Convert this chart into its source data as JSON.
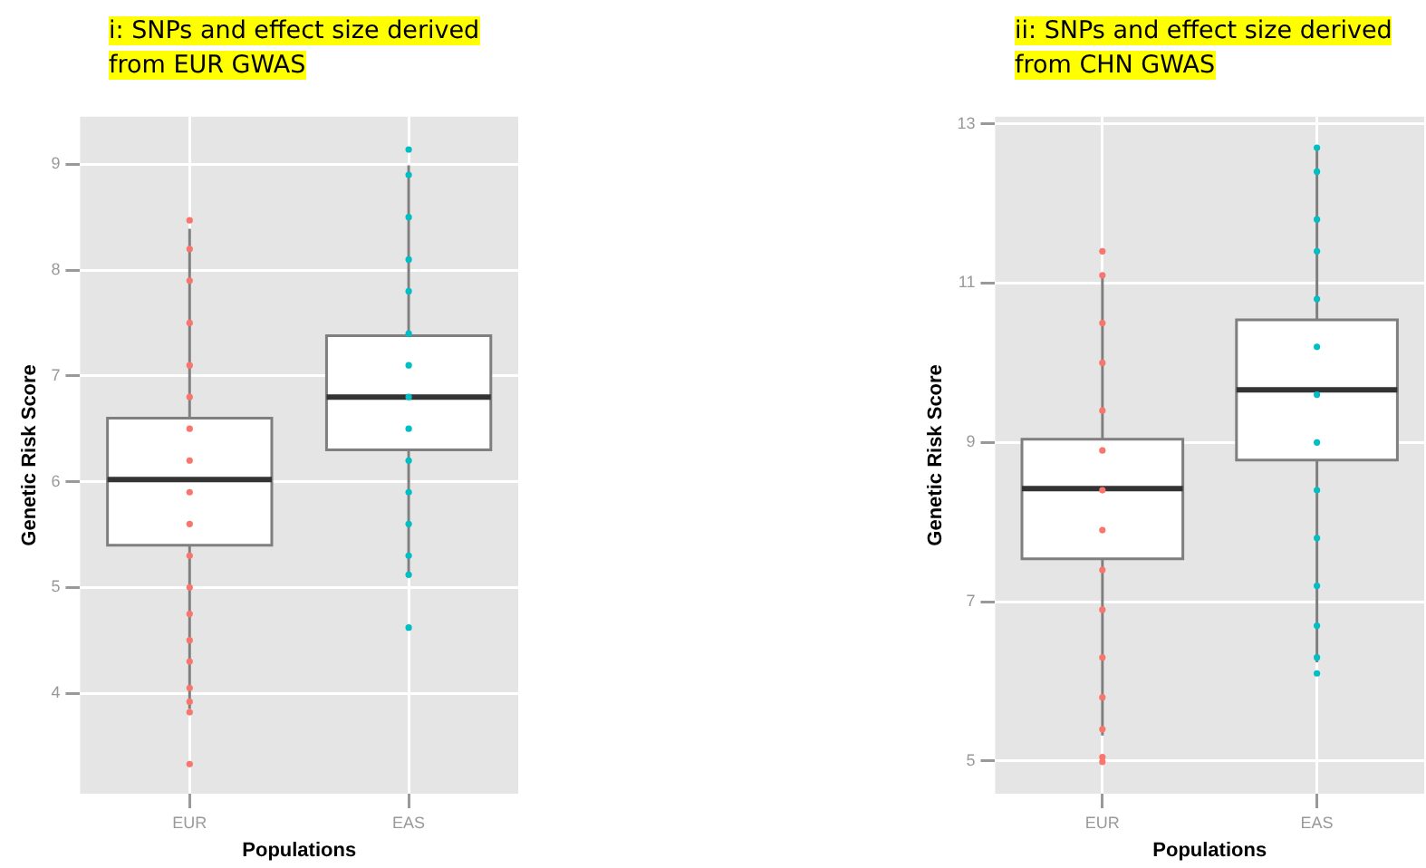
{
  "chart_data": [
    {
      "type": "box",
      "title": "i: SNPs and effect size derived from EUR GWAS",
      "xlabel": "Populations",
      "ylabel": "Genetic Risk Score",
      "categories": [
        "EUR",
        "EAS"
      ],
      "boxes": [
        {
          "low": 3.85,
          "q1": 5.4,
          "median": 6.02,
          "q3": 6.6,
          "high": 8.39
        },
        {
          "low": 5.14,
          "q1": 6.3,
          "median": 6.8,
          "q3": 7.38,
          "high": 8.99
        }
      ],
      "series": [
        {
          "type": "scatter",
          "color": "#f8766d",
          "x": [
            "EUR",
            "EUR",
            "EUR",
            "EUR",
            "EUR",
            "EUR",
            "EUR",
            "EUR",
            "EUR",
            "EUR",
            "EUR",
            "EUR",
            "EUR",
            "EUR",
            "EUR",
            "EUR",
            "EUR",
            "EUR",
            "EUR"
          ],
          "values": [
            3.33,
            3.82,
            3.92,
            4.05,
            4.3,
            4.5,
            4.75,
            5.0,
            5.3,
            5.6,
            5.9,
            6.2,
            6.5,
            6.8,
            7.1,
            7.5,
            7.9,
            8.2,
            8.47
          ]
        },
        {
          "type": "scatter",
          "color": "#00bfc4",
          "x": [
            "EAS",
            "EAS",
            "EAS",
            "EAS",
            "EAS",
            "EAS",
            "EAS",
            "EAS",
            "EAS",
            "EAS",
            "EAS",
            "EAS",
            "EAS",
            "EAS",
            "EAS"
          ],
          "values": [
            4.62,
            5.12,
            5.3,
            5.6,
            5.9,
            6.2,
            6.5,
            6.8,
            7.1,
            7.4,
            7.8,
            8.1,
            8.5,
            8.9,
            9.14
          ]
        }
      ],
      "ylim": [
        3.05,
        9.45
      ],
      "yticks": [
        4,
        5,
        6,
        7,
        8,
        9
      ],
      "grid": true,
      "legend": false
    },
    {
      "type": "box",
      "title": "ii: SNPs and effect size derived from CHN GWAS",
      "xlabel": "Populations",
      "ylabel": "Genetic Risk Score",
      "categories": [
        "EUR",
        "EAS"
      ],
      "boxes": [
        {
          "low": 5.32,
          "q1": 7.54,
          "median": 8.42,
          "q3": 9.04,
          "high": 11.07
        },
        {
          "low": 6.24,
          "q1": 8.78,
          "median": 9.66,
          "q3": 10.54,
          "high": 12.69
        }
      ],
      "series": [
        {
          "type": "scatter",
          "color": "#f8766d",
          "x": [
            "EUR",
            "EUR",
            "EUR",
            "EUR",
            "EUR",
            "EUR",
            "EUR",
            "EUR",
            "EUR",
            "EUR",
            "EUR",
            "EUR",
            "EUR",
            "EUR",
            "EUR"
          ],
          "values": [
            4.99,
            5.05,
            5.4,
            5.8,
            6.3,
            6.9,
            7.4,
            7.9,
            8.4,
            8.9,
            9.4,
            10.0,
            10.5,
            11.1,
            11.4
          ]
        },
        {
          "type": "scatter",
          "color": "#00bfc4",
          "x": [
            "EAS",
            "EAS",
            "EAS",
            "EAS",
            "EAS",
            "EAS",
            "EAS",
            "EAS",
            "EAS",
            "EAS",
            "EAS",
            "EAS",
            "EAS",
            "EAS"
          ],
          "values": [
            6.1,
            6.3,
            6.7,
            7.2,
            7.8,
            8.4,
            9.0,
            9.6,
            10.2,
            10.8,
            11.4,
            11.8,
            12.4,
            12.7
          ]
        }
      ],
      "ylim": [
        4.59,
        13.09
      ],
      "yticks": [
        5,
        7,
        9,
        11,
        13
      ],
      "grid": true,
      "legend": false
    }
  ]
}
